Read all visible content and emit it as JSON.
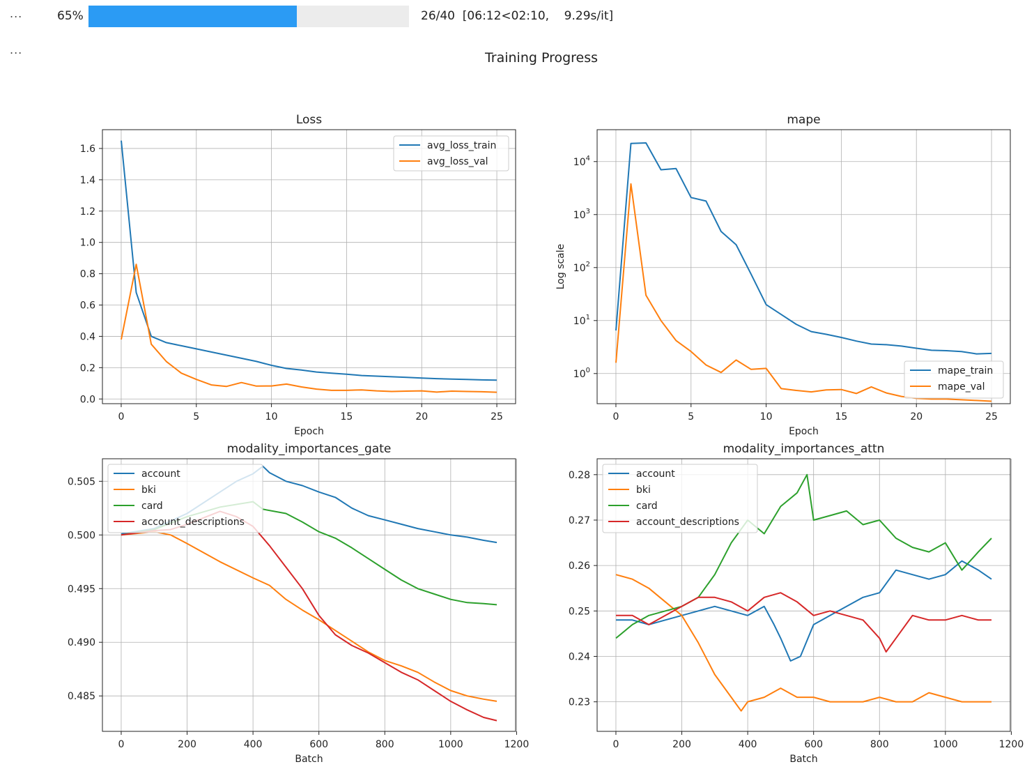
{
  "progress": {
    "percent_label": "65%",
    "fraction": 0.65,
    "status": "26/40  [06:12<02:10,    9.29s/it]",
    "fill_color": "#2b9bf4",
    "track_color": "#ececec"
  },
  "ellipsis_1": "...",
  "ellipsis_2": "...",
  "figure_title": "Training Progress",
  "chart_data": [
    {
      "type": "line",
      "title": "Loss",
      "xlabel": "Epoch",
      "ylabel": "",
      "xlim": [
        -1.25,
        26.25
      ],
      "ylim": [
        -0.03,
        1.72
      ],
      "xticks": [
        0,
        5,
        10,
        15,
        20,
        25
      ],
      "yticks": [
        0.0,
        0.2,
        0.4,
        0.6,
        0.8,
        1.0,
        1.2,
        1.4,
        1.6
      ],
      "ytick_labels": [
        "0.0",
        "0.2",
        "0.4",
        "0.6",
        "0.8",
        "1.0",
        "1.2",
        "1.4",
        "1.6"
      ],
      "grid": true,
      "legend": "upper-right",
      "series": [
        {
          "name": "avg_loss_train",
          "color": "#1f77b4",
          "x": [
            0,
            1,
            2,
            3,
            4,
            5,
            6,
            7,
            8,
            9,
            10,
            11,
            12,
            13,
            14,
            15,
            16,
            17,
            18,
            19,
            20,
            21,
            22,
            23,
            24,
            25
          ],
          "y": [
            1.65,
            0.68,
            0.4,
            0.36,
            0.34,
            0.32,
            0.3,
            0.28,
            0.26,
            0.24,
            0.215,
            0.195,
            0.185,
            0.172,
            0.165,
            0.158,
            0.15,
            0.146,
            0.142,
            0.138,
            0.134,
            0.13,
            0.127,
            0.125,
            0.122,
            0.12
          ]
        },
        {
          "name": "avg_loss_val",
          "color": "#ff7f0e",
          "x": [
            0,
            1,
            2,
            3,
            4,
            5,
            6,
            7,
            8,
            9,
            10,
            11,
            12,
            13,
            14,
            15,
            16,
            17,
            18,
            19,
            20,
            21,
            22,
            23,
            24,
            25
          ],
          "y": [
            0.38,
            0.86,
            0.35,
            0.24,
            0.165,
            0.125,
            0.09,
            0.08,
            0.105,
            0.082,
            0.083,
            0.095,
            0.077,
            0.063,
            0.055,
            0.055,
            0.058,
            0.052,
            0.048,
            0.05,
            0.052,
            0.044,
            0.05,
            0.048,
            0.046,
            0.043
          ]
        }
      ]
    },
    {
      "type": "line",
      "title": "mape",
      "xlabel": "Epoch",
      "ylabel": "Log scale",
      "yscale": "log",
      "xlim": [
        -1.25,
        26.25
      ],
      "ylim": [
        0.27,
        40000
      ],
      "xticks": [
        0,
        5,
        10,
        15,
        20,
        25
      ],
      "yticks": [
        1,
        10,
        100,
        1000,
        10000
      ],
      "ytick_exponents": [
        "0",
        "1",
        "2",
        "3",
        "4"
      ],
      "ytick_base": "10",
      "grid": true,
      "legend": "lower-right",
      "series": [
        {
          "name": "mape_train",
          "color": "#1f77b4",
          "x": [
            0,
            1,
            2,
            3,
            4,
            5,
            6,
            7,
            8,
            9,
            10,
            11,
            12,
            13,
            14,
            15,
            16,
            17,
            18,
            19,
            20,
            21,
            22,
            23,
            24,
            25
          ],
          "y": [
            6.5,
            22000,
            22500,
            7000,
            7400,
            2100,
            1800,
            480,
            270,
            75,
            20,
            13,
            8.5,
            6.2,
            5.5,
            4.8,
            4.1,
            3.6,
            3.5,
            3.3,
            3.0,
            2.75,
            2.7,
            2.6,
            2.35,
            2.4
          ]
        },
        {
          "name": "mape_val",
          "color": "#ff7f0e",
          "x": [
            0,
            1,
            2,
            3,
            4,
            5,
            6,
            7,
            8,
            9,
            10,
            11,
            12,
            13,
            14,
            15,
            16,
            17,
            18,
            19,
            20,
            21,
            22,
            23,
            24,
            25
          ],
          "y": [
            1.6,
            3800,
            30,
            10,
            4.2,
            2.6,
            1.45,
            1.05,
            1.8,
            1.2,
            1.25,
            0.52,
            0.48,
            0.45,
            0.49,
            0.5,
            0.42,
            0.56,
            0.43,
            0.37,
            0.34,
            0.33,
            0.33,
            0.32,
            0.31,
            0.3
          ]
        }
      ]
    },
    {
      "type": "line",
      "title": "modality_importances_gate",
      "xlabel": "Batch",
      "ylabel": "",
      "xlim": [
        -57,
        1197
      ],
      "ylim": [
        0.4817,
        0.5071
      ],
      "xticks": [
        0,
        200,
        400,
        600,
        800,
        1000,
        1200
      ],
      "yticks": [
        0.485,
        0.49,
        0.495,
        0.5,
        0.505
      ],
      "ytick_labels": [
        "0.485",
        "0.490",
        "0.495",
        "0.500",
        "0.505"
      ],
      "grid": true,
      "legend": "upper-left",
      "series": [
        {
          "name": "account",
          "color": "#1f77b4",
          "x": [
            0,
            100,
            200,
            300,
            350,
            400,
            430,
            450,
            500,
            550,
            600,
            650,
            700,
            750,
            800,
            850,
            900,
            950,
            1000,
            1050,
            1100,
            1140
          ],
          "y": [
            0.5001,
            0.5006,
            0.502,
            0.504,
            0.505,
            0.5057,
            0.5064,
            0.5058,
            0.505,
            0.5046,
            0.504,
            0.5035,
            0.5025,
            0.5018,
            0.5014,
            0.501,
            0.5006,
            0.5003,
            0.5,
            0.4998,
            0.4995,
            0.4993
          ]
        },
        {
          "name": "bki",
          "color": "#ff7f0e",
          "x": [
            0,
            100,
            150,
            200,
            300,
            400,
            450,
            500,
            550,
            600,
            650,
            700,
            750,
            800,
            850,
            900,
            950,
            1000,
            1050,
            1100,
            1140
          ],
          "y": [
            0.5,
            0.5003,
            0.5,
            0.4992,
            0.4975,
            0.496,
            0.4953,
            0.494,
            0.493,
            0.4921,
            0.4911,
            0.4901,
            0.4891,
            0.4883,
            0.4878,
            0.4872,
            0.4863,
            0.4855,
            0.485,
            0.4847,
            0.4845
          ]
        },
        {
          "name": "card",
          "color": "#2ca02c",
          "x": [
            0,
            100,
            200,
            300,
            400,
            430,
            500,
            550,
            600,
            650,
            700,
            750,
            800,
            850,
            900,
            950,
            1000,
            1050,
            1100,
            1140
          ],
          "y": [
            0.5,
            0.5005,
            0.5017,
            0.5026,
            0.5031,
            0.5024,
            0.502,
            0.5012,
            0.5003,
            0.4997,
            0.4988,
            0.4978,
            0.4968,
            0.4958,
            0.495,
            0.4945,
            0.494,
            0.4937,
            0.4936,
            0.4935
          ]
        },
        {
          "name": "account_descriptions",
          "color": "#d62728",
          "x": [
            0,
            50,
            100,
            150,
            200,
            250,
            300,
            350,
            400,
            450,
            500,
            550,
            600,
            650,
            700,
            750,
            800,
            850,
            900,
            950,
            1000,
            1050,
            1100,
            1140
          ],
          "y": [
            0.5,
            0.5002,
            0.5004,
            0.5005,
            0.501,
            0.5016,
            0.5022,
            0.5017,
            0.5008,
            0.499,
            0.497,
            0.495,
            0.4925,
            0.4907,
            0.4897,
            0.489,
            0.4881,
            0.4872,
            0.4865,
            0.4855,
            0.4845,
            0.4837,
            0.483,
            0.4827
          ]
        }
      ]
    },
    {
      "type": "line",
      "title": "modality_importances_attn",
      "xlabel": "Batch",
      "ylabel": "",
      "xlim": [
        -57,
        1197
      ],
      "ylim": [
        0.2235,
        0.2835
      ],
      "xticks": [
        0,
        200,
        400,
        600,
        800,
        1000,
        1200
      ],
      "yticks": [
        0.23,
        0.24,
        0.25,
        0.26,
        0.27,
        0.28
      ],
      "ytick_labels": [
        "0.23",
        "0.24",
        "0.25",
        "0.26",
        "0.27",
        "0.28"
      ],
      "grid": true,
      "legend": "upper-left",
      "series": [
        {
          "name": "account",
          "color": "#1f77b4",
          "x": [
            0,
            50,
            100,
            150,
            200,
            250,
            300,
            350,
            400,
            450,
            480,
            500,
            530,
            560,
            600,
            650,
            700,
            750,
            800,
            850,
            900,
            950,
            1000,
            1050,
            1100,
            1140
          ],
          "y": [
            0.248,
            0.248,
            0.247,
            0.248,
            0.249,
            0.25,
            0.251,
            0.25,
            0.249,
            0.251,
            0.247,
            0.244,
            0.239,
            0.24,
            0.247,
            0.249,
            0.251,
            0.253,
            0.254,
            0.259,
            0.258,
            0.257,
            0.258,
            0.261,
            0.259,
            0.257
          ]
        },
        {
          "name": "bki",
          "color": "#ff7f0e",
          "x": [
            0,
            50,
            100,
            150,
            200,
            250,
            300,
            350,
            380,
            400,
            450,
            500,
            550,
            600,
            650,
            700,
            750,
            800,
            850,
            900,
            950,
            1000,
            1050,
            1100,
            1140
          ],
          "y": [
            0.258,
            0.257,
            0.255,
            0.252,
            0.249,
            0.243,
            0.236,
            0.231,
            0.228,
            0.23,
            0.231,
            0.233,
            0.231,
            0.231,
            0.23,
            0.23,
            0.23,
            0.231,
            0.23,
            0.23,
            0.232,
            0.231,
            0.23,
            0.23,
            0.23
          ]
        },
        {
          "name": "card",
          "color": "#2ca02c",
          "x": [
            0,
            50,
            100,
            150,
            200,
            250,
            300,
            350,
            400,
            450,
            500,
            550,
            580,
            600,
            650,
            700,
            750,
            800,
            850,
            900,
            950,
            1000,
            1050,
            1100,
            1140
          ],
          "y": [
            0.244,
            0.247,
            0.249,
            0.25,
            0.251,
            0.253,
            0.258,
            0.265,
            0.27,
            0.267,
            0.273,
            0.276,
            0.28,
            0.27,
            0.271,
            0.272,
            0.269,
            0.27,
            0.266,
            0.264,
            0.263,
            0.265,
            0.259,
            0.263,
            0.266
          ]
        },
        {
          "name": "account_descriptions",
          "color": "#d62728",
          "x": [
            0,
            50,
            100,
            150,
            200,
            250,
            300,
            350,
            400,
            450,
            500,
            550,
            600,
            650,
            700,
            750,
            800,
            820,
            850,
            900,
            950,
            1000,
            1050,
            1100,
            1140
          ],
          "y": [
            0.249,
            0.249,
            0.247,
            0.249,
            0.251,
            0.253,
            0.253,
            0.252,
            0.25,
            0.253,
            0.254,
            0.252,
            0.249,
            0.25,
            0.249,
            0.248,
            0.244,
            0.241,
            0.244,
            0.249,
            0.248,
            0.248,
            0.249,
            0.248,
            0.248
          ]
        }
      ]
    }
  ]
}
